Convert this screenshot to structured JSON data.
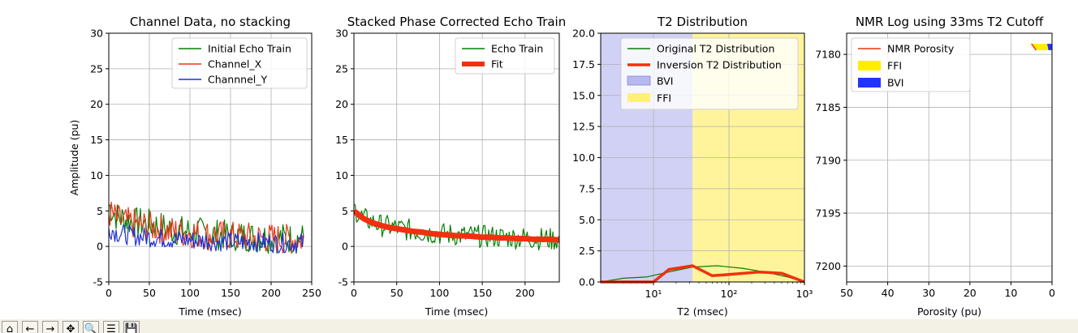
{
  "chart_data": [
    {
      "type": "line",
      "title": "Channel Data, no stacking",
      "xlabel": "Time (msec)",
      "ylabel": "Amplitude (pu)",
      "xlim": [
        0,
        250
      ],
      "ylim": [
        -5,
        30
      ],
      "xticks": [
        0,
        50,
        100,
        150,
        200,
        250
      ],
      "yticks": [
        -5,
        0,
        5,
        10,
        15,
        20,
        25,
        30
      ],
      "grid": true,
      "legend_position": "top-right",
      "series": [
        {
          "name": "Initial Echo Train",
          "color": "#008000",
          "x": [
            0,
            10,
            20,
            30,
            40,
            50,
            60,
            70,
            80,
            90,
            100,
            110,
            120,
            130,
            140,
            150,
            160,
            170,
            180,
            190,
            200,
            210,
            220,
            230,
            240
          ],
          "y": [
            5.8,
            4.2,
            3.8,
            3.4,
            3.3,
            3.1,
            2.9,
            2.6,
            2.3,
            2.2,
            2.1,
            2.0,
            1.8,
            1.7,
            1.6,
            1.5,
            1.5,
            1.4,
            1.3,
            1.3,
            1.2,
            1.2,
            1.1,
            1.1,
            1.1
          ]
        },
        {
          "name": "Channel_X",
          "color": "#e8361b",
          "x": [
            0,
            10,
            20,
            30,
            40,
            50,
            60,
            70,
            80,
            90,
            100,
            110,
            120,
            130,
            140,
            150,
            160,
            170,
            180,
            190,
            200,
            210,
            220,
            230,
            240
          ],
          "y": [
            4.8,
            3.8,
            3.4,
            3.2,
            3.0,
            2.8,
            2.6,
            2.3,
            2.1,
            2.0,
            1.9,
            1.8,
            1.6,
            1.5,
            1.5,
            1.4,
            1.3,
            1.3,
            1.2,
            1.2,
            1.1,
            1.1,
            1.0,
            1.0,
            1.0
          ]
        },
        {
          "name": "Channnel_Y",
          "color": "#1f2fd6",
          "x": [
            0,
            10,
            20,
            30,
            40,
            50,
            60,
            70,
            80,
            90,
            100,
            110,
            120,
            130,
            140,
            150,
            160,
            170,
            180,
            190,
            200,
            210,
            220,
            230,
            240
          ],
          "y": [
            2.6,
            1.9,
            1.7,
            1.5,
            1.4,
            1.3,
            1.2,
            1.1,
            1.0,
            0.9,
            0.9,
            0.8,
            0.8,
            0.7,
            0.7,
            0.7,
            0.6,
            0.6,
            0.6,
            0.6,
            0.5,
            0.5,
            0.5,
            0.5,
            0.5
          ]
        }
      ]
    },
    {
      "type": "line",
      "title": "Stacked Phase Corrected Echo Train",
      "xlabel": "Time (msec)",
      "ylabel": "",
      "xlim": [
        0,
        240
      ],
      "ylim": [
        -5,
        30
      ],
      "xticks": [
        0,
        50,
        100,
        150,
        200
      ],
      "yticks": [
        -5,
        0,
        5,
        10,
        15,
        20,
        25,
        30
      ],
      "grid": true,
      "legend_position": "top-right",
      "series": [
        {
          "name": "Echo Train",
          "color": "#008000",
          "x": [
            0,
            10,
            20,
            30,
            40,
            50,
            60,
            70,
            80,
            90,
            100,
            110,
            120,
            130,
            140,
            150,
            160,
            170,
            180,
            190,
            200,
            210,
            220,
            230,
            240
          ],
          "y": [
            5.4,
            4.0,
            3.5,
            3.0,
            2.8,
            2.6,
            2.4,
            2.2,
            2.0,
            1.9,
            1.8,
            1.7,
            1.6,
            1.5,
            1.5,
            1.4,
            1.4,
            1.3,
            1.3,
            1.2,
            1.2,
            1.1,
            1.1,
            1.0,
            1.0
          ]
        },
        {
          "name": "Fit",
          "color": "#f2300f",
          "x": [
            0,
            10,
            20,
            30,
            40,
            50,
            60,
            70,
            80,
            90,
            100,
            110,
            120,
            130,
            140,
            150,
            160,
            170,
            180,
            190,
            200,
            210,
            220,
            230,
            240
          ],
          "y": [
            5.0,
            4.0,
            3.4,
            3.0,
            2.7,
            2.5,
            2.3,
            2.1,
            2.0,
            1.8,
            1.7,
            1.6,
            1.5,
            1.5,
            1.4,
            1.3,
            1.3,
            1.2,
            1.2,
            1.1,
            1.1,
            1.0,
            1.0,
            1.0,
            0.9
          ]
        }
      ]
    },
    {
      "type": "line",
      "title": "T2 Distribution",
      "xlabel": "T2 (msec)",
      "ylabel": "",
      "xscale": "log",
      "xlim": [
        2,
        1000
      ],
      "ylim": [
        0,
        20
      ],
      "xticks": [
        "10¹",
        "10²",
        "10³"
      ],
      "yticks": [
        0.0,
        2.5,
        5.0,
        7.5,
        10.0,
        12.5,
        15.0,
        17.5,
        20.0
      ],
      "grid": true,
      "legend_position": "top-right",
      "cutoff_ms": 33,
      "series": [
        {
          "name": "Original T2 Distribution",
          "color": "#008000",
          "x": [
            2,
            4,
            8,
            16,
            33,
            70,
            150,
            300,
            600,
            1000
          ],
          "y": [
            0.0,
            0.3,
            0.4,
            0.8,
            1.2,
            1.3,
            1.1,
            0.8,
            0.4,
            0.0
          ]
        },
        {
          "name": "Inversion T2 Distribution",
          "color": "#f2300f",
          "x": [
            2,
            6,
            10,
            16,
            33,
            60,
            100,
            250,
            500,
            1000
          ],
          "y": [
            0.0,
            0.0,
            0.0,
            1.0,
            1.3,
            0.5,
            0.6,
            0.8,
            0.7,
            0.0
          ]
        }
      ],
      "shaded": [
        {
          "name": "BVI",
          "color": "#b8b8f0"
        },
        {
          "name": "FFI",
          "color": "#fff07a"
        }
      ]
    },
    {
      "type": "area",
      "title": "NMR Log using 33ms T2 Cutoff",
      "xlabel": "Porosity (pu)",
      "ylabel": "",
      "xlim": [
        50,
        0
      ],
      "ylim": [
        7201.5,
        7178
      ],
      "xticks": [
        50,
        40,
        30,
        20,
        10,
        0
      ],
      "yticks": [
        7180,
        7185,
        7190,
        7195,
        7200
      ],
      "grid": true,
      "legend_position": "top-left",
      "series": [
        {
          "name": "NMR Porosity",
          "color": "#f2300f",
          "depth": [
            7179.0,
            7179.3,
            7179.6
          ],
          "values": [
            5.0,
            4.4,
            3.9
          ]
        },
        {
          "name": "FFI",
          "color": "#ffee00",
          "depth": [
            7179.0,
            7179.3,
            7179.6
          ],
          "values": [
            4.0,
            3.5,
            3.0
          ]
        },
        {
          "name": "BVI",
          "color": "#2233ff",
          "depth": [
            7179.0,
            7179.3,
            7179.6
          ],
          "values": [
            1.2,
            1.0,
            0.9
          ]
        }
      ]
    }
  ],
  "toolbar": {
    "buttons": [
      {
        "name": "home-icon",
        "glyph": "⌂"
      },
      {
        "name": "back-icon",
        "glyph": "←"
      },
      {
        "name": "forward-icon",
        "glyph": "→"
      },
      {
        "name": "pan-icon",
        "glyph": "✥"
      },
      {
        "name": "zoom-icon",
        "glyph": "🔍"
      },
      {
        "name": "configure-icon",
        "glyph": "☰"
      },
      {
        "name": "save-icon",
        "glyph": "💾"
      }
    ]
  }
}
